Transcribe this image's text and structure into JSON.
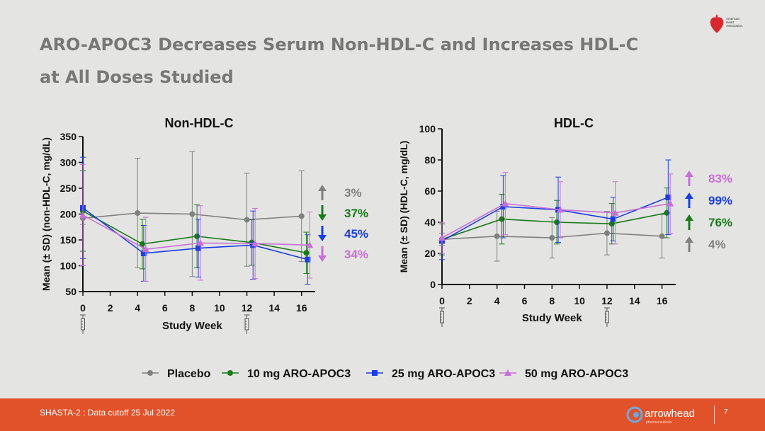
{
  "slide": {
    "title_line1": "ARO-APOC3 Decreases Serum Non-HDL-C and Increases HDL-C",
    "title_line2": "at All Doses Studied",
    "logo_text": [
      "American",
      "Heart",
      "Association."
    ],
    "footer_note": "SHASTA-2 : Data cutoff 25 Jul 2022",
    "brand_name": "arrowhead",
    "brand_sub": "pharmaceuticals",
    "page_number": "7"
  },
  "colors": {
    "placebo": "#808080",
    "mg10": "#1a7a1a",
    "mg25": "#1a3ee0",
    "mg50": "#c86fd8",
    "footer": "#e2522a"
  },
  "legend": [
    {
      "key": "placebo",
      "label": "Placebo",
      "marker": "circle"
    },
    {
      "key": "mg10",
      "label": "10 mg ARO-APOC3",
      "marker": "circle"
    },
    {
      "key": "mg25",
      "label": "25 mg ARO-APOC3",
      "marker": "square"
    },
    {
      "key": "mg50",
      "label": "50 mg ARO-APOC3",
      "marker": "triangle"
    }
  ],
  "chart_data": [
    {
      "type": "line",
      "title": "Non-HDL-C",
      "xlabel": "Study Week",
      "ylabel": "Mean (± SD) (non-HDL-C, mg/dL)",
      "xlim": [
        0,
        17
      ],
      "ylim": [
        50,
        350
      ],
      "xticks": [
        0,
        2,
        4,
        6,
        8,
        10,
        12,
        14,
        16
      ],
      "yticks": [
        50,
        100,
        150,
        200,
        250,
        300,
        350
      ],
      "dosing_weeks": [
        0,
        12
      ],
      "series": [
        {
          "name": "Placebo",
          "key": "placebo",
          "x": [
            0,
            4,
            8,
            12,
            16
          ],
          "y": [
            192,
            202,
            200,
            189,
            196
          ],
          "sd": [
            12,
            106,
            121,
            90,
            88
          ]
        },
        {
          "name": "10 mg ARO-APOC3",
          "key": "mg10",
          "x": [
            0,
            4,
            8,
            12,
            16
          ],
          "y": [
            206,
            142,
            157,
            145,
            125
          ],
          "sd": [
            78,
            48,
            61,
            44,
            40
          ]
        },
        {
          "name": "25 mg ARO-APOC3",
          "key": "mg25",
          "x": [
            0,
            4,
            8,
            12,
            16
          ],
          "y": [
            212,
            124,
            134,
            140,
            112
          ],
          "sd": [
            98,
            54,
            56,
            66,
            48
          ]
        },
        {
          "name": "50 mg ARO-APOC3",
          "key": "mg50",
          "x": [
            0,
            4,
            8,
            12,
            16
          ],
          "y": [
            198,
            132,
            144,
            143,
            140
          ],
          "sd": [
            98,
            62,
            72,
            68,
            64
          ]
        }
      ],
      "changes": [
        {
          "key": "placebo",
          "direction": "up",
          "text": "3%"
        },
        {
          "key": "mg10",
          "direction": "down",
          "text": "37%"
        },
        {
          "key": "mg25",
          "direction": "down",
          "text": "45%"
        },
        {
          "key": "mg50",
          "direction": "down",
          "text": "34%"
        }
      ]
    },
    {
      "type": "line",
      "title": "HDL-C",
      "xlabel": "Study Week",
      "ylabel": "Mean (± SD) (HDL-C, mg/dL)",
      "xlim": [
        0,
        17
      ],
      "ylim": [
        0,
        100
      ],
      "xticks": [
        0,
        2,
        4,
        6,
        8,
        10,
        12,
        14,
        16
      ],
      "yticks": [
        0,
        20,
        40,
        60,
        80,
        100
      ],
      "dosing_weeks": [
        0,
        12
      ],
      "series": [
        {
          "name": "Placebo",
          "key": "placebo",
          "x": [
            0,
            4,
            8,
            12,
            16
          ],
          "y": [
            29,
            31,
            30,
            33,
            31
          ],
          "sd": [
            4,
            16,
            13,
            14,
            14
          ]
        },
        {
          "name": "10 mg ARO-APOC3",
          "key": "mg10",
          "x": [
            0,
            4,
            8,
            12,
            16
          ],
          "y": [
            29,
            42,
            40,
            39,
            46
          ],
          "sd": [
            10,
            16,
            14,
            13,
            16
          ]
        },
        {
          "name": "25 mg ARO-APOC3",
          "key": "mg25",
          "x": [
            0,
            4,
            8,
            12,
            16
          ],
          "y": [
            28,
            50,
            48,
            42,
            56
          ],
          "sd": [
            12,
            20,
            21,
            14,
            24
          ]
        },
        {
          "name": "50 mg ARO-APOC3",
          "key": "mg50",
          "x": [
            0,
            4,
            8,
            12,
            16
          ],
          "y": [
            30,
            52,
            48,
            46,
            52
          ],
          "sd": [
            10,
            20,
            18,
            20,
            19
          ]
        }
      ],
      "changes": [
        {
          "key": "mg50",
          "direction": "up",
          "text": "83%"
        },
        {
          "key": "mg25",
          "direction": "up",
          "text": "99%"
        },
        {
          "key": "mg10",
          "direction": "up",
          "text": "76%"
        },
        {
          "key": "placebo",
          "direction": "up",
          "text": "4%"
        }
      ]
    }
  ]
}
